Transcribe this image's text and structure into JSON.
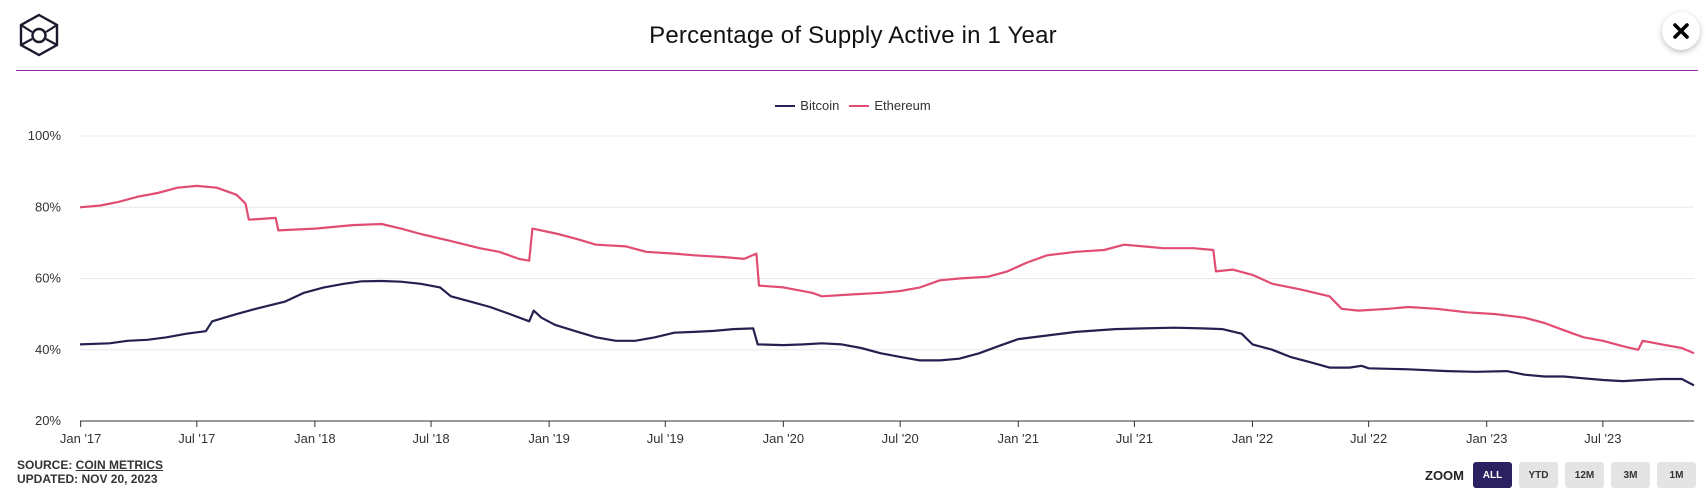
{
  "header": {
    "title": "Percentage of Supply Active in 1 Year",
    "logo_icon": "cube-logo-icon",
    "close_icon": "close-icon"
  },
  "chart_data": {
    "type": "line",
    "title": "Percentage of Supply Active in 1 Year",
    "xlabel": "",
    "ylabel": "",
    "ylim": [
      20,
      100
    ],
    "y_ticks": [
      20,
      40,
      60,
      80,
      100
    ],
    "y_tick_labels": [
      "20%",
      "40%",
      "60%",
      "80%",
      "100%"
    ],
    "x_range": [
      "2016-12-31",
      "2023-11-20"
    ],
    "x_ticks": [
      "2017-01-01",
      "2017-07-01",
      "2018-01-01",
      "2018-07-01",
      "2019-01-01",
      "2019-07-01",
      "2020-01-01",
      "2020-07-01",
      "2021-01-01",
      "2021-07-01",
      "2022-01-01",
      "2022-07-01",
      "2023-01-01",
      "2023-07-01"
    ],
    "x_tick_labels": [
      "Jan '17",
      "Jul '17",
      "Jan '18",
      "Jul '18",
      "Jan '19",
      "Jul '19",
      "Jan '20",
      "Jul '20",
      "Jan '21",
      "Jul '21",
      "Jan '22",
      "Jul '22",
      "Jan '23",
      "Jul '23"
    ],
    "grid": true,
    "legend_position": "top-center",
    "series": [
      {
        "name": "Bitcoin",
        "color": "#23214f",
        "points": [
          [
            "2016-12-31",
            41.5
          ],
          [
            "2017-02-15",
            41.8
          ],
          [
            "2017-03-15",
            42.5
          ],
          [
            "2017-04-15",
            42.8
          ],
          [
            "2017-05-15",
            43.5
          ],
          [
            "2017-06-15",
            44.5
          ],
          [
            "2017-07-15",
            45.2
          ],
          [
            "2017-07-25",
            48.0
          ],
          [
            "2017-09-01",
            50.0
          ],
          [
            "2017-10-01",
            51.5
          ],
          [
            "2017-11-15",
            53.5
          ],
          [
            "2017-12-15",
            56.0
          ],
          [
            "2018-01-15",
            57.5
          ],
          [
            "2018-02-15",
            58.5
          ],
          [
            "2018-03-15",
            59.2
          ],
          [
            "2018-04-15",
            59.3
          ],
          [
            "2018-05-15",
            59.1
          ],
          [
            "2018-06-15",
            58.5
          ],
          [
            "2018-07-15",
            57.5
          ],
          [
            "2018-08-01",
            55.0
          ],
          [
            "2018-09-01",
            53.5
          ],
          [
            "2018-10-01",
            52.0
          ],
          [
            "2018-11-01",
            50.0
          ],
          [
            "2018-12-01",
            48.0
          ],
          [
            "2018-12-08",
            51.0
          ],
          [
            "2018-12-20",
            49.0
          ],
          [
            "2019-01-10",
            47.0
          ],
          [
            "2019-02-15",
            45.0
          ],
          [
            "2019-03-15",
            43.5
          ],
          [
            "2019-04-15",
            42.5
          ],
          [
            "2019-05-15",
            42.5
          ],
          [
            "2019-06-15",
            43.5
          ],
          [
            "2019-07-15",
            44.8
          ],
          [
            "2019-08-15",
            45.0
          ],
          [
            "2019-09-15",
            45.3
          ],
          [
            "2019-10-15",
            45.8
          ],
          [
            "2019-11-15",
            46.0
          ],
          [
            "2019-11-22",
            41.5
          ],
          [
            "2020-01-01",
            41.3
          ],
          [
            "2020-02-01",
            41.5
          ],
          [
            "2020-03-01",
            41.8
          ],
          [
            "2020-04-01",
            41.5
          ],
          [
            "2020-05-01",
            40.5
          ],
          [
            "2020-06-01",
            39.0
          ],
          [
            "2020-07-01",
            38.0
          ],
          [
            "2020-08-01",
            37.0
          ],
          [
            "2020-09-01",
            37.0
          ],
          [
            "2020-10-01",
            37.5
          ],
          [
            "2020-11-01",
            39.0
          ],
          [
            "2020-12-01",
            41.0
          ],
          [
            "2021-01-01",
            43.0
          ],
          [
            "2021-02-15",
            44.0
          ],
          [
            "2021-04-01",
            45.0
          ],
          [
            "2021-06-01",
            45.8
          ],
          [
            "2021-07-15",
            46.0
          ],
          [
            "2021-09-01",
            46.2
          ],
          [
            "2021-10-15",
            46.0
          ],
          [
            "2021-11-15",
            45.8
          ],
          [
            "2021-12-15",
            44.5
          ],
          [
            "2022-01-01",
            41.5
          ],
          [
            "2022-02-01",
            40.0
          ],
          [
            "2022-03-01",
            38.0
          ],
          [
            "2022-04-01",
            36.5
          ],
          [
            "2022-05-01",
            35.0
          ],
          [
            "2022-06-01",
            35.0
          ],
          [
            "2022-06-20",
            35.5
          ],
          [
            "2022-07-01",
            34.8
          ],
          [
            "2022-09-01",
            34.5
          ],
          [
            "2022-11-01",
            34.0
          ],
          [
            "2022-12-15",
            33.8
          ],
          [
            "2023-02-01",
            34.0
          ],
          [
            "2023-03-01",
            33.0
          ],
          [
            "2023-04-01",
            32.5
          ],
          [
            "2023-05-01",
            32.5
          ],
          [
            "2023-06-01",
            32.0
          ],
          [
            "2023-07-01",
            31.5
          ],
          [
            "2023-08-01",
            31.2
          ],
          [
            "2023-09-01",
            31.5
          ],
          [
            "2023-10-01",
            31.8
          ],
          [
            "2023-11-01",
            31.8
          ],
          [
            "2023-11-20",
            30.0
          ]
        ]
      },
      {
        "name": "Ethereum",
        "color": "#e14d72",
        "points": [
          [
            "2016-12-31",
            80.0
          ],
          [
            "2017-02-01",
            80.5
          ],
          [
            "2017-03-01",
            81.5
          ],
          [
            "2017-04-01",
            83.0
          ],
          [
            "2017-05-01",
            84.0
          ],
          [
            "2017-06-01",
            85.5
          ],
          [
            "2017-07-01",
            86.0
          ],
          [
            "2017-08-01",
            85.5
          ],
          [
            "2017-09-01",
            83.5
          ],
          [
            "2017-09-15",
            81.0
          ],
          [
            "2017-09-20",
            76.5
          ],
          [
            "2017-11-01",
            77.0
          ],
          [
            "2017-11-05",
            73.5
          ],
          [
            "2018-01-01",
            74.0
          ],
          [
            "2018-03-01",
            75.0
          ],
          [
            "2018-04-15",
            75.3
          ],
          [
            "2018-05-15",
            74.0
          ],
          [
            "2018-06-15",
            72.5
          ],
          [
            "2018-08-01",
            70.5
          ],
          [
            "2018-09-15",
            68.5
          ],
          [
            "2018-10-15",
            67.5
          ],
          [
            "2018-11-15",
            65.5
          ],
          [
            "2018-12-01",
            65.0
          ],
          [
            "2018-12-06",
            74.0
          ],
          [
            "2019-01-15",
            72.5
          ],
          [
            "2019-02-15",
            71.0
          ],
          [
            "2019-03-15",
            69.5
          ],
          [
            "2019-05-01",
            69.0
          ],
          [
            "2019-06-01",
            67.5
          ],
          [
            "2019-07-15",
            67.0
          ],
          [
            "2019-08-15",
            66.5
          ],
          [
            "2019-10-01",
            66.0
          ],
          [
            "2019-11-01",
            65.5
          ],
          [
            "2019-11-20",
            67.0
          ],
          [
            "2019-11-24",
            58.0
          ],
          [
            "2020-01-01",
            57.5
          ],
          [
            "2020-02-15",
            56.0
          ],
          [
            "2020-03-01",
            55.0
          ],
          [
            "2020-04-15",
            55.5
          ],
          [
            "2020-06-01",
            56.0
          ],
          [
            "2020-07-01",
            56.5
          ],
          [
            "2020-08-01",
            57.5
          ],
          [
            "2020-09-01",
            59.5
          ],
          [
            "2020-10-01",
            60.0
          ],
          [
            "2020-11-15",
            60.5
          ],
          [
            "2020-12-15",
            62.0
          ],
          [
            "2021-01-15",
            64.5
          ],
          [
            "2021-02-15",
            66.5
          ],
          [
            "2021-04-01",
            67.5
          ],
          [
            "2021-05-15",
            68.0
          ],
          [
            "2021-06-15",
            69.5
          ],
          [
            "2021-07-15",
            69.0
          ],
          [
            "2021-08-15",
            68.5
          ],
          [
            "2021-10-01",
            68.5
          ],
          [
            "2021-11-01",
            68.0
          ],
          [
            "2021-11-05",
            62.0
          ],
          [
            "2021-12-01",
            62.5
          ],
          [
            "2022-01-01",
            61.0
          ],
          [
            "2022-02-01",
            58.5
          ],
          [
            "2022-03-15",
            57.0
          ],
          [
            "2022-05-01",
            55.0
          ],
          [
            "2022-05-20",
            51.5
          ],
          [
            "2022-06-15",
            51.0
          ],
          [
            "2022-08-01",
            51.5
          ],
          [
            "2022-09-01",
            52.0
          ],
          [
            "2022-10-15",
            51.5
          ],
          [
            "2022-12-01",
            50.5
          ],
          [
            "2023-01-15",
            50.0
          ],
          [
            "2023-03-01",
            49.0
          ],
          [
            "2023-04-01",
            47.5
          ],
          [
            "2023-05-01",
            45.5
          ],
          [
            "2023-06-01",
            43.5
          ],
          [
            "2023-07-01",
            42.5
          ],
          [
            "2023-08-01",
            41.0
          ],
          [
            "2023-08-25",
            40.0
          ],
          [
            "2023-09-01",
            42.5
          ],
          [
            "2023-10-01",
            41.5
          ],
          [
            "2023-11-01",
            40.5
          ],
          [
            "2023-11-20",
            39.0
          ]
        ]
      }
    ]
  },
  "legend": [
    {
      "label": "Bitcoin",
      "color": "#23214f"
    },
    {
      "label": "Ethereum",
      "color": "#e14d72"
    }
  ],
  "footer": {
    "source_prefix": "SOURCE: ",
    "source_link": "COIN METRICS",
    "updated": "UPDATED: NOV 20, 2023"
  },
  "zoom": {
    "label": "ZOOM",
    "options": [
      "ALL",
      "YTD",
      "12M",
      "3M",
      "1M"
    ],
    "active": "ALL"
  },
  "colors": {
    "accent": "#8e2fa0",
    "zoom_active": "#2b2160"
  }
}
